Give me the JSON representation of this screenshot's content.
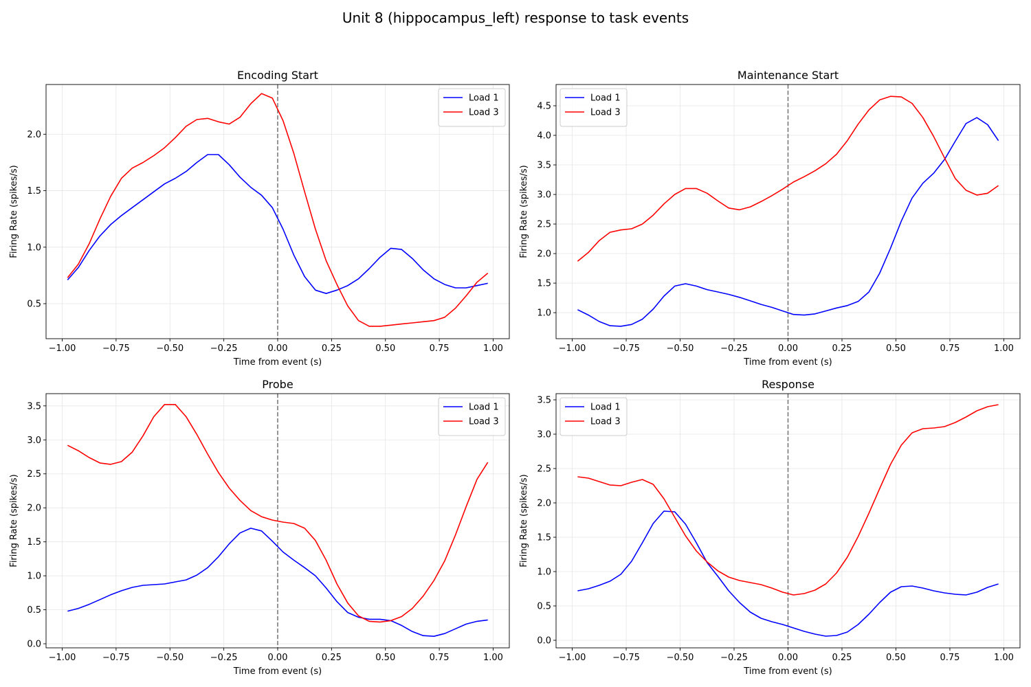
{
  "title": "Unit 8 (hippocampus_left) response to task events",
  "chart_data": [
    {
      "type": "line",
      "title": "Encoding Start",
      "xlabel": "Time from event (s)",
      "ylabel": "Firing Rate (spikes/s)",
      "xlim": [
        -1.075,
        1.075
      ],
      "ylim": [
        0.19,
        2.44
      ],
      "xticks": [
        -1.0,
        -0.75,
        -0.5,
        -0.25,
        0.0,
        0.25,
        0.5,
        0.75,
        1.0
      ],
      "xtick_labels": [
        "−1.00",
        "−0.75",
        "−0.50",
        "−0.25",
        "0.00",
        "0.25",
        "0.50",
        "0.75",
        "1.00"
      ],
      "yticks": [
        0.5,
        1.0,
        1.5,
        2.0
      ],
      "ytick_labels": [
        "0.5",
        "1.0",
        "1.5",
        "2.0"
      ],
      "grid": true,
      "legend": "upper-right",
      "event_line_x": 0,
      "x": [
        -0.975,
        -0.925,
        -0.875,
        -0.825,
        -0.775,
        -0.725,
        -0.675,
        -0.625,
        -0.575,
        -0.525,
        -0.475,
        -0.425,
        -0.375,
        -0.325,
        -0.275,
        -0.225,
        -0.175,
        -0.125,
        -0.075,
        -0.025,
        0.025,
        0.075,
        0.125,
        0.175,
        0.225,
        0.275,
        0.325,
        0.375,
        0.425,
        0.475,
        0.525,
        0.575,
        0.625,
        0.675,
        0.725,
        0.775,
        0.825,
        0.875,
        0.925,
        0.975
      ],
      "series": [
        {
          "name": "Load 1",
          "color": "#0000ff",
          "values": [
            0.71,
            0.82,
            0.97,
            1.1,
            1.2,
            1.28,
            1.35,
            1.42,
            1.49,
            1.56,
            1.61,
            1.67,
            1.75,
            1.82,
            1.82,
            1.73,
            1.62,
            1.53,
            1.46,
            1.35,
            1.16,
            0.93,
            0.74,
            0.62,
            0.59,
            0.62,
            0.66,
            0.72,
            0.81,
            0.91,
            0.99,
            0.98,
            0.9,
            0.8,
            0.72,
            0.67,
            0.64,
            0.64,
            0.66,
            0.68
          ]
        },
        {
          "name": "Load 3",
          "color": "#ff0000",
          "values": [
            0.73,
            0.85,
            1.03,
            1.25,
            1.45,
            1.61,
            1.7,
            1.75,
            1.81,
            1.88,
            1.97,
            2.07,
            2.13,
            2.14,
            2.11,
            2.09,
            2.15,
            2.27,
            2.36,
            2.32,
            2.12,
            1.83,
            1.49,
            1.16,
            0.88,
            0.67,
            0.48,
            0.35,
            0.3,
            0.3,
            0.31,
            0.32,
            0.33,
            0.34,
            0.35,
            0.38,
            0.46,
            0.57,
            0.69,
            0.77
          ]
        }
      ]
    },
    {
      "type": "line",
      "title": "Maintenance Start",
      "xlabel": "Time from event (s)",
      "ylabel": "Firing Rate (spikes/s)",
      "xlim": [
        -1.075,
        1.075
      ],
      "ylim": [
        0.56,
        4.86
      ],
      "xticks": [
        -1.0,
        -0.75,
        -0.5,
        -0.25,
        0.0,
        0.25,
        0.5,
        0.75,
        1.0
      ],
      "xtick_labels": [
        "−1.00",
        "−0.75",
        "−0.50",
        "−0.25",
        "0.00",
        "0.25",
        "0.50",
        "0.75",
        "1.00"
      ],
      "yticks": [
        1.0,
        1.5,
        2.0,
        2.5,
        3.0,
        3.5,
        4.0,
        4.5
      ],
      "ytick_labels": [
        "1.0",
        "1.5",
        "2.0",
        "2.5",
        "3.0",
        "3.5",
        "4.0",
        "4.5"
      ],
      "grid": true,
      "legend": "upper-left",
      "event_line_x": 0,
      "x": [
        -0.975,
        -0.925,
        -0.875,
        -0.825,
        -0.775,
        -0.725,
        -0.675,
        -0.625,
        -0.575,
        -0.525,
        -0.475,
        -0.425,
        -0.375,
        -0.325,
        -0.275,
        -0.225,
        -0.175,
        -0.125,
        -0.075,
        -0.025,
        0.025,
        0.075,
        0.125,
        0.175,
        0.225,
        0.275,
        0.325,
        0.375,
        0.425,
        0.475,
        0.525,
        0.575,
        0.625,
        0.675,
        0.725,
        0.775,
        0.825,
        0.875,
        0.925,
        0.975
      ],
      "series": [
        {
          "name": "Load 1",
          "color": "#0000ff",
          "values": [
            1.05,
            0.96,
            0.85,
            0.78,
            0.77,
            0.8,
            0.89,
            1.06,
            1.28,
            1.45,
            1.49,
            1.45,
            1.39,
            1.35,
            1.31,
            1.26,
            1.2,
            1.14,
            1.09,
            1.03,
            0.97,
            0.96,
            0.98,
            1.03,
            1.08,
            1.12,
            1.19,
            1.35,
            1.67,
            2.09,
            2.55,
            2.94,
            3.19,
            3.36,
            3.59,
            3.9,
            4.2,
            4.3,
            4.18,
            3.91
          ]
        },
        {
          "name": "Load 3",
          "color": "#ff0000",
          "values": [
            1.87,
            2.02,
            2.22,
            2.36,
            2.4,
            2.42,
            2.5,
            2.65,
            2.84,
            3.0,
            3.1,
            3.1,
            3.02,
            2.89,
            2.77,
            2.74,
            2.79,
            2.88,
            2.98,
            3.09,
            3.21,
            3.3,
            3.4,
            3.52,
            3.68,
            3.91,
            4.19,
            4.43,
            4.6,
            4.66,
            4.65,
            4.54,
            4.3,
            3.98,
            3.62,
            3.27,
            3.07,
            2.99,
            3.02,
            3.15
          ]
        }
      ]
    },
    {
      "type": "line",
      "title": "Probe",
      "xlabel": "Time from event (s)",
      "ylabel": "Firing Rate (spikes/s)",
      "xlim": [
        -1.075,
        1.075
      ],
      "ylim": [
        -0.06,
        3.68
      ],
      "xticks": [
        -1.0,
        -0.75,
        -0.5,
        -0.25,
        0.0,
        0.25,
        0.5,
        0.75,
        1.0
      ],
      "xtick_labels": [
        "−1.00",
        "−0.75",
        "−0.50",
        "−0.25",
        "0.00",
        "0.25",
        "0.50",
        "0.75",
        "1.00"
      ],
      "yticks": [
        0.0,
        0.5,
        1.0,
        1.5,
        2.0,
        2.5,
        3.0,
        3.5
      ],
      "ytick_labels": [
        "0.0",
        "0.5",
        "1.0",
        "1.5",
        "2.0",
        "2.5",
        "3.0",
        "3.5"
      ],
      "grid": true,
      "legend": "upper-right",
      "event_line_x": 0,
      "x": [
        -0.975,
        -0.925,
        -0.875,
        -0.825,
        -0.775,
        -0.725,
        -0.675,
        -0.625,
        -0.575,
        -0.525,
        -0.475,
        -0.425,
        -0.375,
        -0.325,
        -0.275,
        -0.225,
        -0.175,
        -0.125,
        -0.075,
        -0.025,
        0.025,
        0.075,
        0.125,
        0.175,
        0.225,
        0.275,
        0.325,
        0.375,
        0.425,
        0.475,
        0.525,
        0.575,
        0.625,
        0.675,
        0.725,
        0.775,
        0.825,
        0.875,
        0.925,
        0.975
      ],
      "series": [
        {
          "name": "Load 1",
          "color": "#0000ff",
          "values": [
            0.48,
            0.52,
            0.58,
            0.65,
            0.72,
            0.78,
            0.83,
            0.86,
            0.87,
            0.88,
            0.91,
            0.94,
            1.01,
            1.12,
            1.28,
            1.47,
            1.63,
            1.7,
            1.66,
            1.51,
            1.35,
            1.23,
            1.12,
            1.0,
            0.82,
            0.62,
            0.46,
            0.39,
            0.36,
            0.36,
            0.34,
            0.27,
            0.18,
            0.12,
            0.11,
            0.15,
            0.22,
            0.29,
            0.33,
            0.35
          ]
        },
        {
          "name": "Load 3",
          "color": "#ff0000",
          "values": [
            2.92,
            2.84,
            2.74,
            2.66,
            2.64,
            2.68,
            2.82,
            3.06,
            3.34,
            3.52,
            3.52,
            3.34,
            3.08,
            2.79,
            2.52,
            2.29,
            2.11,
            1.96,
            1.87,
            1.82,
            1.79,
            1.77,
            1.7,
            1.52,
            1.23,
            0.88,
            0.6,
            0.41,
            0.33,
            0.32,
            0.34,
            0.4,
            0.52,
            0.7,
            0.93,
            1.22,
            1.6,
            2.02,
            2.42,
            2.67
          ]
        }
      ]
    },
    {
      "type": "line",
      "title": "Response",
      "xlabel": "Time from event (s)",
      "ylabel": "Firing Rate (spikes/s)",
      "xlim": [
        -1.075,
        1.075
      ],
      "ylim": [
        -0.11,
        3.59
      ],
      "xticks": [
        -1.0,
        -0.75,
        -0.5,
        -0.25,
        0.0,
        0.25,
        0.5,
        0.75,
        1.0
      ],
      "xtick_labels": [
        "−1.00",
        "−0.75",
        "−0.50",
        "−0.25",
        "0.00",
        "0.25",
        "0.50",
        "0.75",
        "1.00"
      ],
      "yticks": [
        0.0,
        0.5,
        1.0,
        1.5,
        2.0,
        2.5,
        3.0,
        3.5
      ],
      "ytick_labels": [
        "0.0",
        "0.5",
        "1.0",
        "1.5",
        "2.0",
        "2.5",
        "3.0",
        "3.5"
      ],
      "grid": true,
      "legend": "upper-left",
      "event_line_x": 0,
      "x": [
        -0.975,
        -0.925,
        -0.875,
        -0.825,
        -0.775,
        -0.725,
        -0.675,
        -0.625,
        -0.575,
        -0.525,
        -0.475,
        -0.425,
        -0.375,
        -0.325,
        -0.275,
        -0.225,
        -0.175,
        -0.125,
        -0.075,
        -0.025,
        0.025,
        0.075,
        0.125,
        0.175,
        0.225,
        0.275,
        0.325,
        0.375,
        0.425,
        0.475,
        0.525,
        0.575,
        0.625,
        0.675,
        0.725,
        0.775,
        0.825,
        0.875,
        0.925,
        0.975
      ],
      "series": [
        {
          "name": "Load 1",
          "color": "#0000ff",
          "values": [
            0.72,
            0.75,
            0.8,
            0.86,
            0.96,
            1.15,
            1.42,
            1.7,
            1.88,
            1.87,
            1.69,
            1.42,
            1.13,
            0.93,
            0.72,
            0.55,
            0.41,
            0.32,
            0.27,
            0.23,
            0.18,
            0.13,
            0.09,
            0.06,
            0.07,
            0.12,
            0.23,
            0.38,
            0.55,
            0.7,
            0.78,
            0.79,
            0.76,
            0.72,
            0.69,
            0.67,
            0.66,
            0.7,
            0.77,
            0.82
          ]
        },
        {
          "name": "Load 3",
          "color": "#ff0000",
          "values": [
            2.38,
            2.36,
            2.31,
            2.26,
            2.25,
            2.3,
            2.34,
            2.27,
            2.06,
            1.79,
            1.52,
            1.3,
            1.14,
            1.01,
            0.92,
            0.87,
            0.84,
            0.81,
            0.76,
            0.7,
            0.66,
            0.68,
            0.73,
            0.82,
            0.98,
            1.21,
            1.51,
            1.85,
            2.21,
            2.56,
            2.84,
            3.02,
            3.08,
            3.09,
            3.11,
            3.17,
            3.25,
            3.34,
            3.4,
            3.43
          ]
        }
      ]
    }
  ]
}
